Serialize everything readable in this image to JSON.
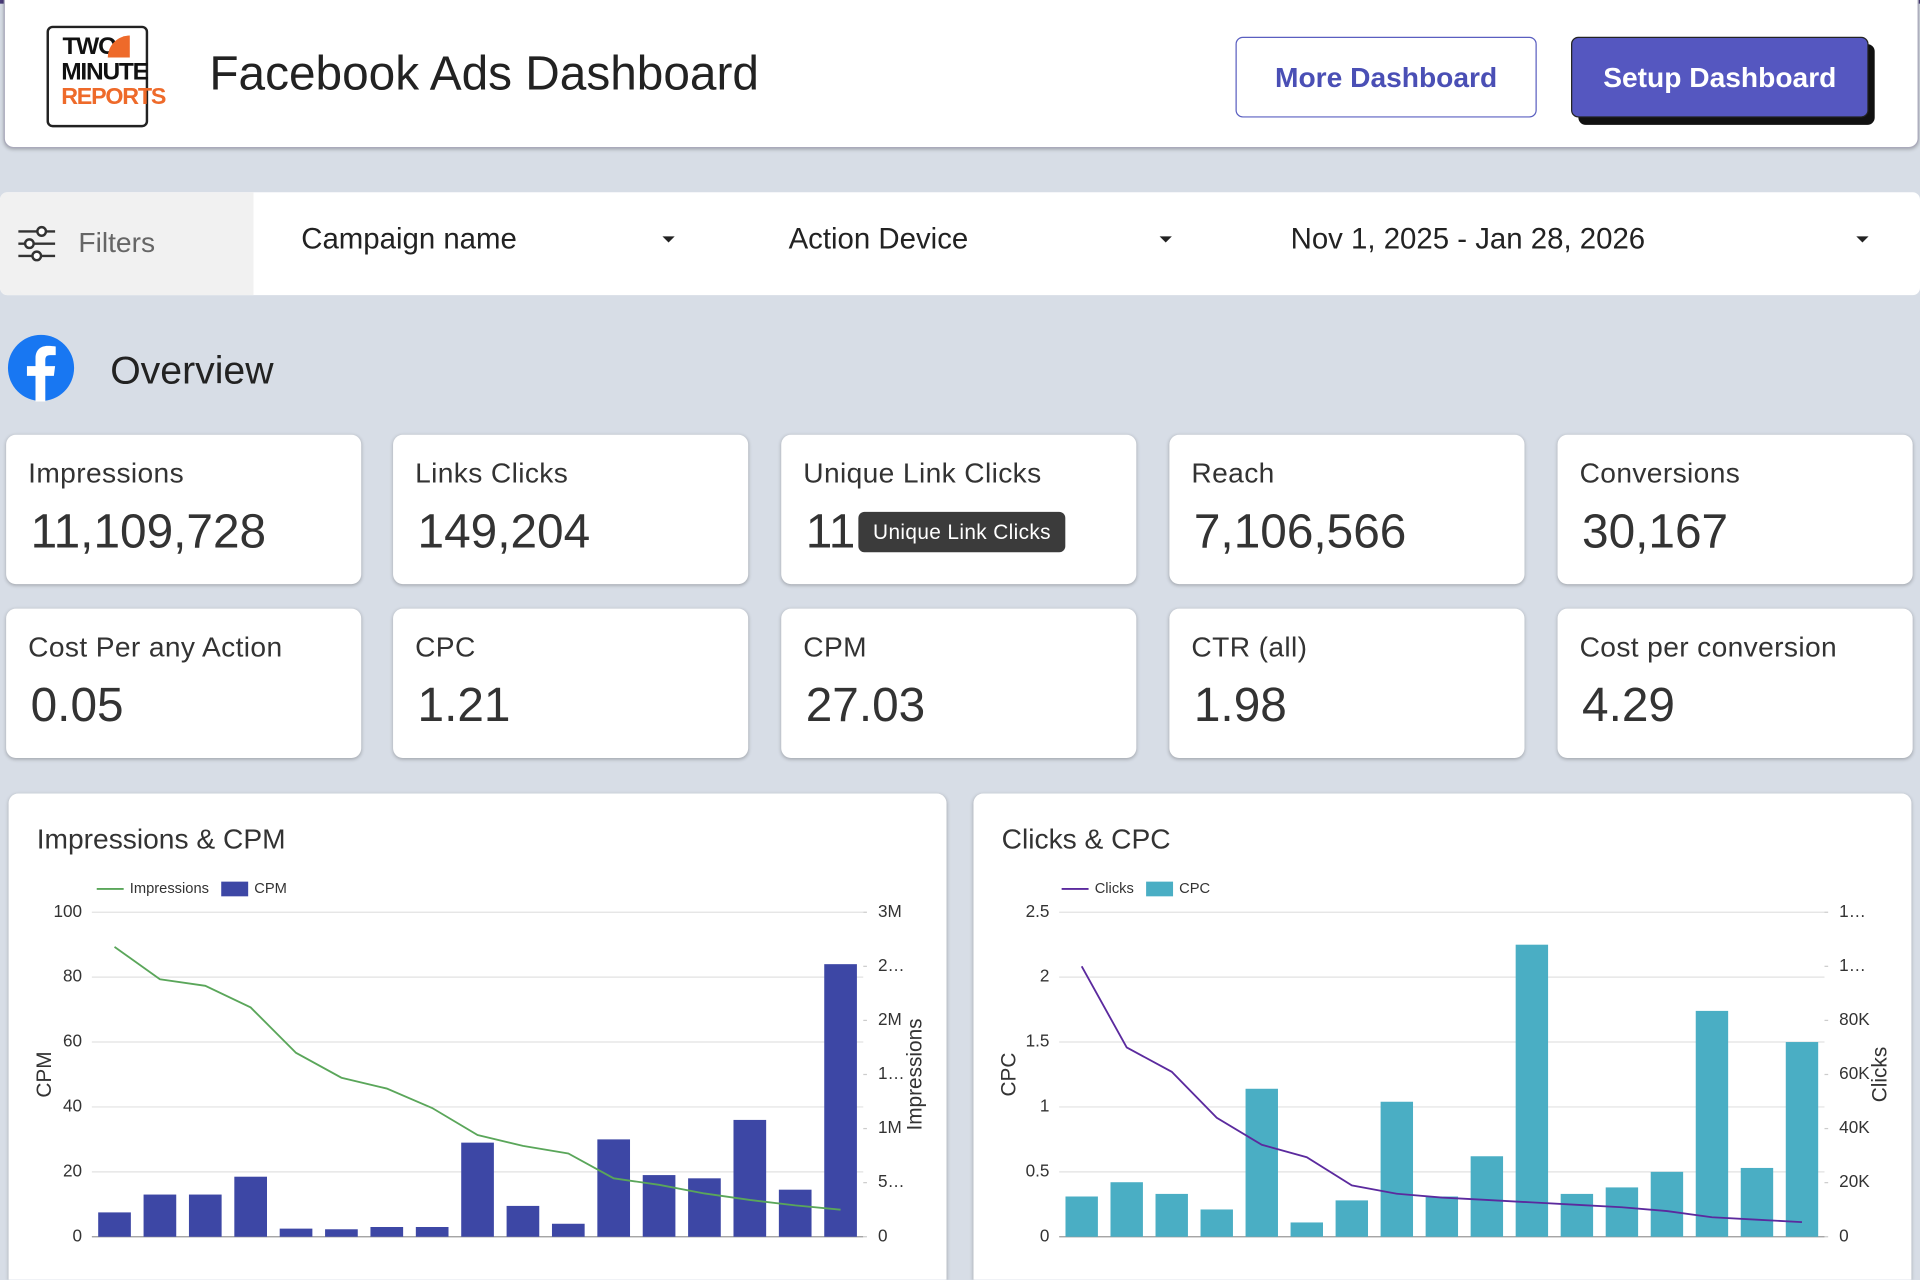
{
  "header": {
    "logo": [
      "TWO",
      "MINUTE",
      "REPORTS"
    ],
    "title": "Facebook Ads Dashboard",
    "buttons": [
      "More Dashboard",
      "Setup Dashboard"
    ]
  },
  "filters": {
    "label": "Filters",
    "dropdowns": [
      "Campaign name",
      "Action Device",
      "Nov 1, 2025 - Jan 28, 2026"
    ]
  },
  "overview": {
    "title": "Overview",
    "tooltip": "Unique Link Clicks",
    "kpis": [
      {
        "label": "Impressions",
        "value": "11,109,728"
      },
      {
        "label": "Links Clicks",
        "value": "149,204"
      },
      {
        "label": "Unique Link Clicks",
        "value": "11"
      },
      {
        "label": "Reach",
        "value": "7,106,566"
      },
      {
        "label": "Conversions",
        "value": "30,167"
      },
      {
        "label": "Cost Per any Action",
        "value": "0.05"
      },
      {
        "label": "CPC",
        "value": "1.21"
      },
      {
        "label": "CPM",
        "value": "27.03"
      },
      {
        "label": "CTR (all)",
        "value": "1.98"
      },
      {
        "label": "Cost per conversion",
        "value": "4.29"
      }
    ]
  },
  "chart_data": [
    {
      "type": "combo",
      "title": "Impressions & CPM",
      "ylabel": "CPM",
      "y2label": "Impressions",
      "ylim": [
        0,
        100
      ],
      "yticks": [
        0,
        20,
        40,
        60,
        80,
        100
      ],
      "y2lim": [
        0,
        3000000
      ],
      "y2ticks": [
        0,
        {
          "value": 500000,
          "label": "5…"
        },
        {
          "value": 1000000,
          "label": "1M"
        },
        {
          "value": 1500000,
          "label": "1…"
        },
        {
          "value": 2000000,
          "label": "2M"
        },
        {
          "value": 2500000,
          "label": "2…"
        },
        {
          "value": 3000000,
          "label": "3M"
        }
      ],
      "grid": true,
      "series": [
        {
          "name": "Impressions",
          "type": "line",
          "axis": "y2",
          "color": "#5aa65a",
          "values": [
            2680000,
            2380000,
            2320000,
            2120000,
            1700000,
            1470000,
            1370000,
            1190000,
            940000,
            840000,
            770000,
            540000,
            480000,
            400000,
            340000,
            290000,
            250000
          ]
        },
        {
          "name": "CPM",
          "type": "bar",
          "color": "#3d47a5",
          "values": [
            7.5,
            13,
            13,
            18.5,
            2.5,
            2.3,
            3,
            3,
            29,
            9.5,
            4,
            30,
            19,
            18,
            36,
            14.5,
            84
          ]
        }
      ]
    },
    {
      "type": "combo",
      "title": "Clicks & CPC",
      "ylabel": "CPC",
      "y2label": "Clicks",
      "ylim": [
        0,
        2.5
      ],
      "yticks": [
        0,
        0.5,
        1,
        1.5,
        2,
        2.5
      ],
      "y2lim": [
        0,
        120000
      ],
      "y2ticks": [
        0,
        {
          "value": 20000,
          "label": "20K"
        },
        {
          "value": 40000,
          "label": "40K"
        },
        {
          "value": 60000,
          "label": "60K"
        },
        {
          "value": 80000,
          "label": "80K"
        },
        {
          "value": 100000,
          "label": "1…"
        },
        {
          "value": 120000,
          "label": "1…"
        }
      ],
      "grid": true,
      "series": [
        {
          "name": "Clicks",
          "type": "line",
          "axis": "y2",
          "color": "#5b2a9e",
          "values": [
            100000,
            70000,
            61000,
            44000,
            34000,
            29400,
            19000,
            15900,
            14500,
            13600,
            12700,
            11800,
            10900,
            9500,
            7200,
            6300,
            5400
          ]
        },
        {
          "name": "CPC",
          "type": "bar",
          "color": "#4aaec4",
          "values": [
            0.31,
            0.42,
            0.33,
            0.21,
            1.14,
            0.11,
            0.28,
            1.04,
            0.31,
            0.62,
            2.25,
            0.33,
            0.38,
            0.5,
            1.74,
            0.53,
            1.5
          ]
        }
      ]
    }
  ]
}
